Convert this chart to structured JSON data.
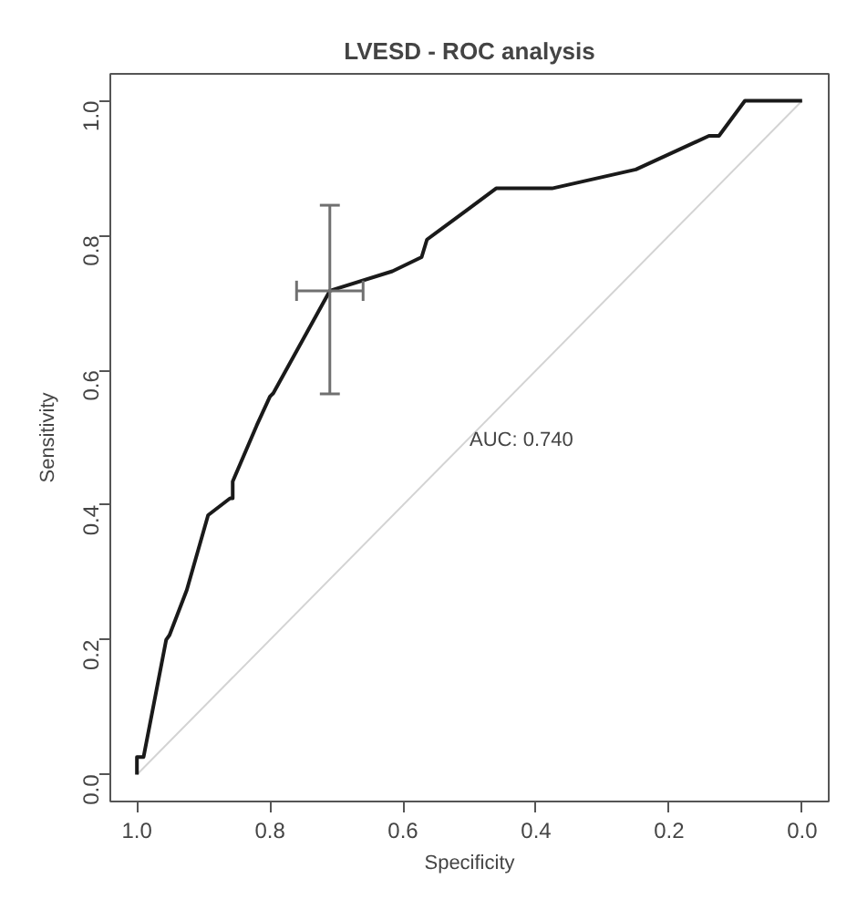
{
  "chart_data": {
    "type": "line",
    "title": "LVESD - ROC analysis",
    "xlabel": "Specificity",
    "ylabel": "Sensitivity",
    "xlim": [
      1.04,
      -0.04
    ],
    "ylim": [
      -0.04,
      1.04
    ],
    "xticks": [
      {
        "value": 1.0,
        "label": "1.0"
      },
      0.8,
      0.6,
      0.4,
      0.2,
      {
        "value": 0.0,
        "label": "0.0"
      }
    ],
    "yticks": [
      {
        "value": 0.0,
        "label": "0.0"
      },
      0.2,
      0.4,
      0.6,
      0.8,
      {
        "value": 1.0,
        "label": "1.0"
      }
    ],
    "grid": false,
    "marker": "none",
    "line_style": "solid",
    "annotations": [
      "AUC: 0.740"
    ],
    "series": [
      {
        "color": "#d3d3d3",
        "x": [
          1.0,
          0.0
        ],
        "values": [
          0.0,
          1.0
        ]
      },
      {
        "color": "#1a1a1a",
        "x": [
          1.0,
          1.0,
          0.99,
          0.956,
          0.951,
          0.925,
          0.893,
          0.86,
          0.856,
          0.856,
          0.82,
          0.8,
          0.795,
          0.71,
          0.616,
          0.572,
          0.564,
          0.46,
          0.376,
          0.25,
          0.14,
          0.125,
          0.086,
          0.0
        ],
        "values": [
          0.0,
          0.026,
          0.026,
          0.2,
          0.207,
          0.274,
          0.385,
          0.41,
          0.41,
          0.435,
          0.518,
          0.561,
          0.566,
          0.718,
          0.747,
          0.768,
          0.794,
          0.87,
          0.87,
          0.898,
          0.948,
          0.948,
          1.0,
          1.0
        ],
        "errors": [
          null,
          null,
          null,
          null,
          null,
          null,
          null,
          null,
          null,
          null,
          null,
          null,
          null,
          [
            0.565,
            0.845
          ],
          null,
          null,
          null,
          null,
          null,
          null,
          null,
          null,
          null,
          null
        ],
        "xerrors": [
          null,
          null,
          null,
          null,
          null,
          null,
          null,
          null,
          null,
          null,
          null,
          null,
          null,
          [
            0.66,
            0.76
          ],
          null,
          null,
          null,
          null,
          null,
          null,
          null,
          null,
          null,
          null
        ]
      }
    ]
  }
}
